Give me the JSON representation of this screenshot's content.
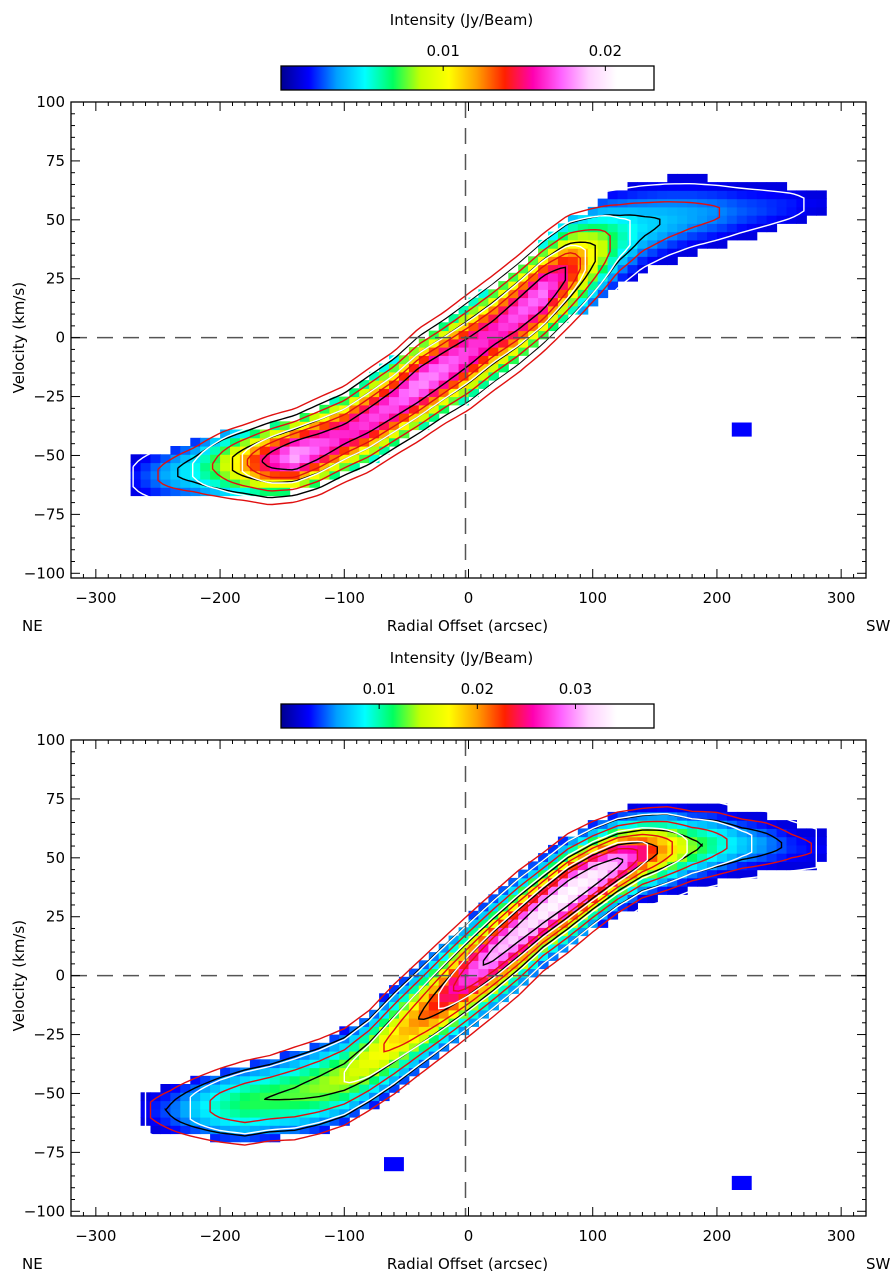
{
  "chart_data": [
    {
      "type": "heatmap",
      "panel": "top",
      "colorbar": {
        "title": "Intensity (Jy/Beam)",
        "ticks": [
          {
            "value": 0.01,
            "label": "0.01"
          },
          {
            "value": 0.02,
            "label": "0.02"
          }
        ],
        "range": [
          0.0,
          0.023
        ],
        "colormap": [
          "#000090",
          "#0000ff",
          "#00a0ff",
          "#00ffff",
          "#00ff60",
          "#c8ff00",
          "#ffff00",
          "#ffa000",
          "#ff2000",
          "#ff00b0",
          "#ff60ff",
          "#ffd0ff",
          "#ffffff"
        ]
      },
      "xlabel": "Radial Offset (arcsec)",
      "ylabel": "Velocity (km/s)",
      "xlim": [
        -320,
        320
      ],
      "ylim": [
        -102,
        100
      ],
      "xticks": [
        -300,
        -200,
        -100,
        0,
        100,
        200,
        300
      ],
      "yticks": [
        -100,
        -75,
        -50,
        -25,
        0,
        25,
        50,
        75,
        100
      ],
      "corner_labels": {
        "left": "NE",
        "right": "SW"
      },
      "reference_lines": {
        "x": 0,
        "y": 0,
        "style": "dashed"
      },
      "ridge": {
        "x": [
          -270,
          -245,
          -220,
          -200,
          -180,
          -160,
          -140,
          -120,
          -100,
          -80,
          -60,
          -40,
          -20,
          0,
          20,
          40,
          60,
          80,
          100,
          120,
          140,
          160,
          180,
          200,
          220,
          240,
          260,
          280
        ],
        "center_v": [
          -59,
          -58,
          -56,
          -54,
          -53,
          -52,
          -50,
          -46,
          -41,
          -35,
          -28,
          -20,
          -13,
          -6,
          2,
          10,
          19,
          28,
          35,
          42,
          47,
          50,
          52,
          53,
          54,
          55,
          56,
          57
        ],
        "peak_intensity": [
          0.002,
          0.004,
          0.006,
          0.009,
          0.0135,
          0.0175,
          0.0205,
          0.019,
          0.018,
          0.0185,
          0.019,
          0.02,
          0.0195,
          0.0185,
          0.018,
          0.019,
          0.0195,
          0.0165,
          0.0115,
          0.007,
          0.0052,
          0.0045,
          0.004,
          0.0036,
          0.003,
          0.0026,
          0.0022,
          0.0016
        ],
        "halfwidth_v": [
          10,
          11,
          12,
          13,
          13,
          14,
          14,
          15,
          15,
          16,
          16,
          17,
          17,
          18,
          18,
          18,
          18,
          18,
          17,
          16,
          15,
          14,
          13,
          12,
          11,
          10,
          9,
          7
        ],
        "detected_halfwidth_v": [
          8,
          10,
          12,
          13,
          14,
          15,
          15,
          16,
          17,
          18,
          19,
          19,
          20,
          20,
          20,
          20,
          21,
          21,
          21,
          20,
          19,
          18,
          17,
          14,
          12,
          10,
          8,
          6
        ]
      },
      "isolated_pixels": [
        {
          "x": 220,
          "v": -39
        }
      ],
      "contours": [
        {
          "color": "black",
          "fraction_levels": [
            0.2,
            0.45,
            0.7
          ]
        },
        {
          "color": "red",
          "fraction_levels": [
            0.15,
            0.35,
            0.6
          ]
        },
        {
          "color": "white",
          "fraction_levels": [
            0.08,
            0.25,
            0.55
          ]
        }
      ]
    },
    {
      "type": "heatmap",
      "panel": "bottom",
      "colorbar": {
        "title": "Intensity (Jy/Beam)",
        "ticks": [
          {
            "value": 0.01,
            "label": "0.01"
          },
          {
            "value": 0.02,
            "label": "0.02"
          },
          {
            "value": 0.03,
            "label": "0.03"
          }
        ],
        "range": [
          0.0,
          0.038
        ],
        "colormap": [
          "#000090",
          "#0000ff",
          "#00a0ff",
          "#00ffff",
          "#00ff60",
          "#c8ff00",
          "#ffff00",
          "#ffa000",
          "#ff2000",
          "#ff00b0",
          "#ff60ff",
          "#ffd0ff",
          "#ffffff"
        ]
      },
      "xlabel": "Radial Offset (arcsec)",
      "ylabel": "Velocity (km/s)",
      "xlim": [
        -320,
        320
      ],
      "ylim": [
        -102,
        100
      ],
      "xticks": [
        -300,
        -200,
        -100,
        0,
        100,
        200,
        300
      ],
      "yticks": [
        -100,
        -75,
        -50,
        -25,
        0,
        25,
        50,
        75,
        100
      ],
      "corner_labels": {
        "left": "NE",
        "right": "SW"
      },
      "reference_lines": {
        "x": 0,
        "y": 0,
        "style": "dashed"
      },
      "ridge": {
        "x": [
          -260,
          -240,
          -220,
          -200,
          -180,
          -160,
          -140,
          -120,
          -100,
          -80,
          -60,
          -40,
          -20,
          0,
          20,
          40,
          60,
          80,
          100,
          120,
          140,
          160,
          180,
          200,
          220,
          240,
          260,
          280
        ],
        "center_v": [
          -57,
          -57,
          -56,
          -55,
          -54,
          -52,
          -50,
          -47,
          -43,
          -36,
          -27,
          -18,
          -9,
          0,
          9,
          18,
          27,
          35,
          42,
          48,
          52,
          54,
          55,
          56,
          56,
          56,
          55,
          54
        ],
        "peak_intensity": [
          0.003,
          0.005,
          0.008,
          0.011,
          0.013,
          0.0135,
          0.014,
          0.015,
          0.016,
          0.018,
          0.02,
          0.023,
          0.027,
          0.031,
          0.034,
          0.035,
          0.037,
          0.038,
          0.037,
          0.034,
          0.028,
          0.021,
          0.015,
          0.011,
          0.008,
          0.006,
          0.004,
          0.003
        ],
        "halfwidth_v": [
          9,
          11,
          12,
          13,
          14,
          14,
          15,
          15,
          15,
          15,
          16,
          16,
          16,
          16,
          16,
          16,
          15,
          15,
          14,
          13,
          12,
          12,
          11,
          11,
          10,
          10,
          9,
          8
        ],
        "detected_halfwidth_v": [
          8,
          10,
          12,
          14,
          16,
          17,
          18,
          19,
          20,
          21,
          22,
          23,
          24,
          24,
          24,
          24,
          24,
          24,
          23,
          22,
          21,
          20,
          18,
          16,
          14,
          12,
          10,
          7
        ]
      },
      "isolated_pixels": [
        {
          "x": -60,
          "v": -80
        },
        {
          "x": 220,
          "v": -88
        }
      ],
      "contours": [
        {
          "color": "black",
          "fraction_levels": [
            0.12,
            0.35,
            0.6,
            0.85
          ]
        },
        {
          "color": "red",
          "fraction_levels": [
            0.08,
            0.25,
            0.5,
            0.75
          ]
        },
        {
          "color": "white",
          "fraction_levels": [
            0.04,
            0.18,
            0.42,
            0.68
          ]
        }
      ]
    }
  ]
}
